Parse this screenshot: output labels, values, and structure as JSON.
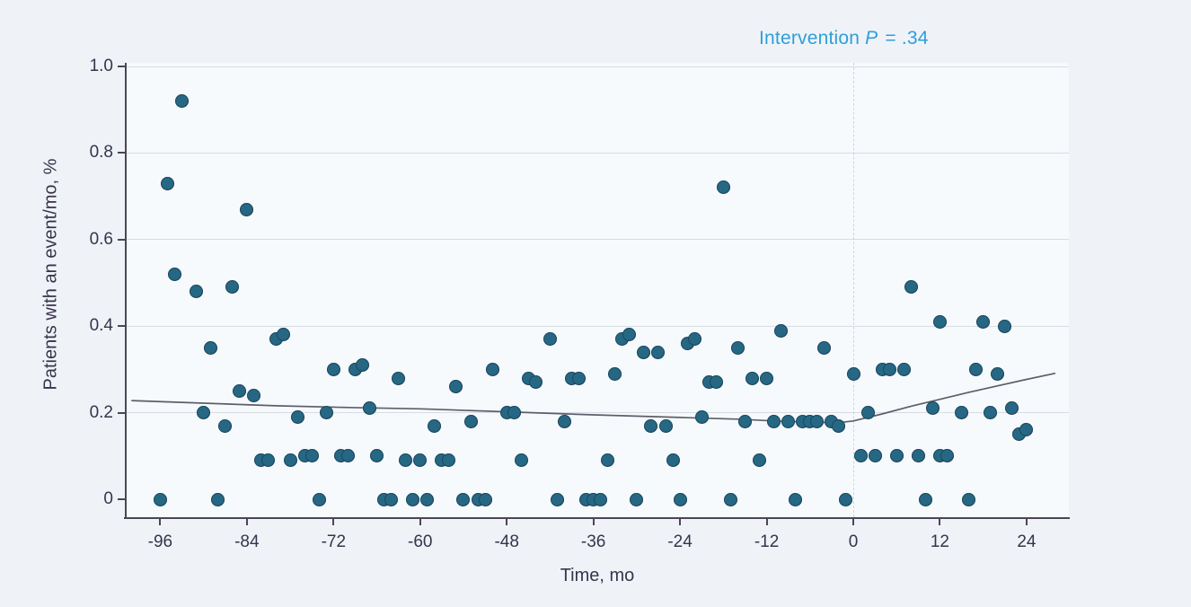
{
  "annotation": {
    "label": "Intervention",
    "p": "P",
    "rest": " = .34"
  },
  "chart_data": {
    "type": "scatter",
    "title": "",
    "xlabel": "Time, mo",
    "ylabel": "Patients with an event/mo, %",
    "annotation": "Intervention P = .34",
    "legend_position": "none",
    "grid": "horizontal",
    "xlim": [
      -100.5,
      30
    ],
    "ylim": [
      -0.04,
      1.0
    ],
    "x_ticks": [
      -96,
      -84,
      -72,
      -60,
      -48,
      -36,
      -24,
      -12,
      0,
      12,
      24
    ],
    "x_tick_labels": [
      "-96",
      "-84",
      "-72",
      "-60",
      "-48",
      "-36",
      "-24",
      "-12",
      "0",
      "12",
      "24"
    ],
    "y_ticks": [
      1.0,
      0.8,
      0.6,
      0.4,
      0.2,
      0
    ],
    "y_tick_labels": [
      "1.0",
      "0.8",
      "0.6",
      "0.4",
      "0.2",
      "0"
    ],
    "y_gridlines": [
      1.0,
      0.8,
      0.6,
      0.4,
      0.2
    ],
    "reference_line_x": 0,
    "points": [
      [
        -96,
        0
      ],
      [
        -95,
        0.73
      ],
      [
        -94,
        0.52
      ],
      [
        -93,
        0.92
      ],
      [
        -91,
        0.48
      ],
      [
        -90,
        0.2
      ],
      [
        -89,
        0.35
      ],
      [
        -88,
        0
      ],
      [
        -87,
        0.17
      ],
      [
        -86,
        0.49
      ],
      [
        -85,
        0.25
      ],
      [
        -84,
        0.67
      ],
      [
        -83,
        0.24
      ],
      [
        -82,
        0.09
      ],
      [
        -81,
        0.09
      ],
      [
        -80,
        0.37
      ],
      [
        -79,
        0.38
      ],
      [
        -78,
        0.09
      ],
      [
        -77,
        0.19
      ],
      [
        -76,
        0.1
      ],
      [
        -75,
        0.1
      ],
      [
        -74,
        0
      ],
      [
        -73,
        0.2
      ],
      [
        -72,
        0.3
      ],
      [
        -71,
        0.1
      ],
      [
        -70,
        0.1
      ],
      [
        -69,
        0.3
      ],
      [
        -68,
        0.31
      ],
      [
        -67,
        0.21
      ],
      [
        -66,
        0.1
      ],
      [
        -65,
        0
      ],
      [
        -64,
        0
      ],
      [
        -63,
        0.28
      ],
      [
        -62,
        0.09
      ],
      [
        -61,
        0
      ],
      [
        -60,
        0.09
      ],
      [
        -59,
        0
      ],
      [
        -58,
        0.17
      ],
      [
        -57,
        0.09
      ],
      [
        -56,
        0.09
      ],
      [
        -55,
        0.26
      ],
      [
        -54,
        0
      ],
      [
        -53,
        0.18
      ],
      [
        -52,
        0
      ],
      [
        -51,
        0
      ],
      [
        -50,
        0.3
      ],
      [
        -48,
        0.2
      ],
      [
        -47,
        0.2
      ],
      [
        -46,
        0.09
      ],
      [
        -45,
        0.28
      ],
      [
        -44,
        0.27
      ],
      [
        -42,
        0.37
      ],
      [
        -41,
        0
      ],
      [
        -40,
        0.18
      ],
      [
        -39,
        0.28
      ],
      [
        -38,
        0.28
      ],
      [
        -37,
        0
      ],
      [
        -36,
        0
      ],
      [
        -35,
        0
      ],
      [
        -34,
        0.09
      ],
      [
        -33,
        0.29
      ],
      [
        -32,
        0.37
      ],
      [
        -31,
        0.38
      ],
      [
        -30,
        0
      ],
      [
        -29,
        0.34
      ],
      [
        -28,
        0.17
      ],
      [
        -27,
        0.34
      ],
      [
        -26,
        0.17
      ],
      [
        -25,
        0.09
      ],
      [
        -24,
        0
      ],
      [
        -23,
        0.36
      ],
      [
        -22,
        0.37
      ],
      [
        -21,
        0.19
      ],
      [
        -20,
        0.27
      ],
      [
        -19,
        0.27
      ],
      [
        -18,
        0.72
      ],
      [
        -17,
        0
      ],
      [
        -16,
        0.35
      ],
      [
        -15,
        0.18
      ],
      [
        -14,
        0.28
      ],
      [
        -13,
        0.09
      ],
      [
        -12,
        0.28
      ],
      [
        -11,
        0.18
      ],
      [
        -10,
        0.39
      ],
      [
        -9,
        0.18
      ],
      [
        -8,
        0
      ],
      [
        -7,
        0.18
      ],
      [
        -6,
        0.18
      ],
      [
        -5,
        0.18
      ],
      [
        -4,
        0.35
      ],
      [
        -3,
        0.18
      ],
      [
        -2,
        0.17
      ],
      [
        -1,
        0
      ],
      [
        0,
        0.29
      ],
      [
        1,
        0.1
      ],
      [
        2,
        0.2
      ],
      [
        3,
        0.1
      ],
      [
        4,
        0.3
      ],
      [
        5,
        0.3
      ],
      [
        6,
        0.1
      ],
      [
        7,
        0.3
      ],
      [
        8,
        0.49
      ],
      [
        9,
        0.1
      ],
      [
        10,
        0
      ],
      [
        11,
        0.21
      ],
      [
        12,
        0.41
      ],
      [
        12,
        0.1
      ],
      [
        13,
        0.1
      ],
      [
        15,
        0.2
      ],
      [
        16,
        0
      ],
      [
        17,
        0.3
      ],
      [
        18,
        0.41
      ],
      [
        19,
        0.2
      ],
      [
        20,
        0.29
      ],
      [
        21,
        0.4
      ],
      [
        22,
        0.21
      ],
      [
        23,
        0.15
      ],
      [
        24,
        0.16
      ]
    ],
    "trend_line": [
      [
        -100,
        0.228
      ],
      [
        -90,
        0.222
      ],
      [
        -80,
        0.216
      ],
      [
        -70,
        0.212
      ],
      [
        -60,
        0.209
      ],
      [
        -48,
        0.202
      ],
      [
        -36,
        0.195
      ],
      [
        -24,
        0.189
      ],
      [
        -16,
        0.185
      ],
      [
        -10,
        0.18
      ],
      [
        -6,
        0.178
      ],
      [
        -2,
        0.177
      ],
      [
        0,
        0.181
      ],
      [
        4,
        0.197
      ],
      [
        8,
        0.215
      ],
      [
        12,
        0.231
      ],
      [
        16,
        0.247
      ],
      [
        20,
        0.262
      ],
      [
        24,
        0.277
      ],
      [
        28,
        0.291
      ]
    ],
    "colors": {
      "point_fill": "#1f5b76",
      "point_edge": "#16384f",
      "trend_line": "#5c5f69",
      "annotation_text": "#2e9fd9",
      "axis_text": "#39334b",
      "gridline": "#d8dde3",
      "reference_line": "#a9c9de",
      "background": "#eff3f8"
    }
  }
}
